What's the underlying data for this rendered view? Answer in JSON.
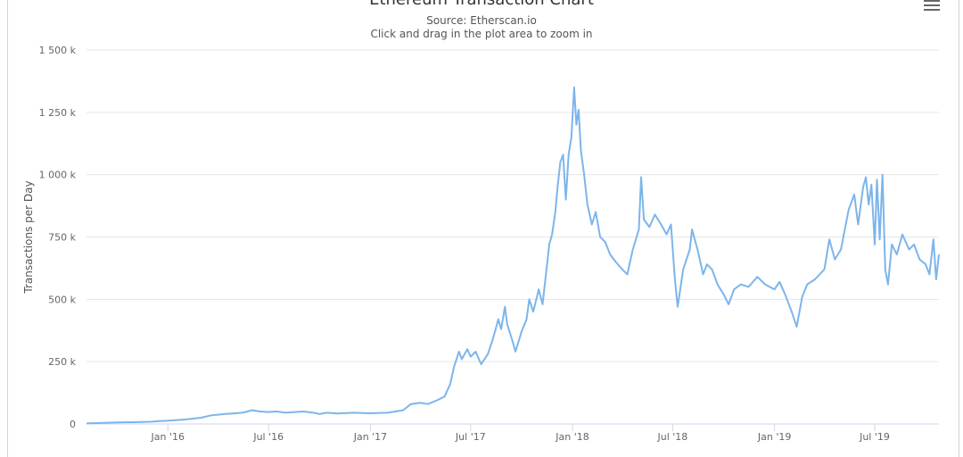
{
  "chart_data": {
    "type": "line",
    "title": "Ethereum Transaction Chart",
    "subtitle": "Source: Etherscan.io",
    "instruction": "Click and drag in the plot area to zoom in",
    "ylabel": "Transactions per Day",
    "ylim": [
      0,
      1500
    ],
    "yticks": [
      {
        "value": 0,
        "label": "0"
      },
      {
        "value": 250,
        "label": "250 k"
      },
      {
        "value": 500,
        "label": "500 k"
      },
      {
        "value": 750,
        "label": "750 k"
      },
      {
        "value": 1000,
        "label": "1 000 k"
      },
      {
        "value": 1250,
        "label": "1 250 k"
      },
      {
        "value": 1500,
        "label": "1 500 k"
      }
    ],
    "xlim": [
      "2015-08-07",
      "2019-10-25"
    ],
    "xticks": [
      {
        "date": "2016-01-01",
        "label": "Jan '16"
      },
      {
        "date": "2016-07-01",
        "label": "Jul '16"
      },
      {
        "date": "2017-01-01",
        "label": "Jan '17"
      },
      {
        "date": "2017-07-01",
        "label": "Jul '17"
      },
      {
        "date": "2018-01-01",
        "label": "Jan '18"
      },
      {
        "date": "2018-07-01",
        "label": "Jul '18"
      },
      {
        "date": "2019-01-01",
        "label": "Jan '19"
      },
      {
        "date": "2019-07-01",
        "label": "Jul '19"
      }
    ],
    "grid": true,
    "color": "#7cb5ec",
    "series": [
      {
        "values": [
          [
            "2015-08-07",
            2
          ],
          [
            "2015-09-01",
            4
          ],
          [
            "2015-10-01",
            6
          ],
          [
            "2015-11-01",
            7
          ],
          [
            "2015-12-01",
            9
          ],
          [
            "2015-12-20",
            12
          ],
          [
            "2016-01-01",
            13
          ],
          [
            "2016-01-15",
            15
          ],
          [
            "2016-02-01",
            18
          ],
          [
            "2016-03-01",
            25
          ],
          [
            "2016-03-20",
            35
          ],
          [
            "2016-04-15",
            40
          ],
          [
            "2016-05-15",
            45
          ],
          [
            "2016-06-01",
            55
          ],
          [
            "2016-06-15",
            50
          ],
          [
            "2016-07-01",
            48
          ],
          [
            "2016-07-15",
            50
          ],
          [
            "2016-08-01",
            45
          ],
          [
            "2016-09-01",
            50
          ],
          [
            "2016-09-20",
            45
          ],
          [
            "2016-10-01",
            40
          ],
          [
            "2016-10-15",
            45
          ],
          [
            "2016-11-01",
            42
          ],
          [
            "2016-12-01",
            45
          ],
          [
            "2017-01-01",
            43
          ],
          [
            "2017-02-01",
            45
          ],
          [
            "2017-03-01",
            55
          ],
          [
            "2017-03-15",
            80
          ],
          [
            "2017-04-01",
            85
          ],
          [
            "2017-04-15",
            80
          ],
          [
            "2017-05-01",
            95
          ],
          [
            "2017-05-15",
            110
          ],
          [
            "2017-05-25",
            160
          ],
          [
            "2017-06-01",
            230
          ],
          [
            "2017-06-10",
            290
          ],
          [
            "2017-06-15",
            260
          ],
          [
            "2017-06-25",
            300
          ],
          [
            "2017-07-01",
            270
          ],
          [
            "2017-07-10",
            290
          ],
          [
            "2017-07-20",
            240
          ],
          [
            "2017-08-01",
            280
          ],
          [
            "2017-08-10",
            340
          ],
          [
            "2017-08-20",
            420
          ],
          [
            "2017-08-25",
            380
          ],
          [
            "2017-09-01",
            470
          ],
          [
            "2017-09-05",
            400
          ],
          [
            "2017-09-15",
            330
          ],
          [
            "2017-09-20",
            290
          ],
          [
            "2017-10-01",
            370
          ],
          [
            "2017-10-10",
            420
          ],
          [
            "2017-10-15",
            500
          ],
          [
            "2017-10-22",
            450
          ],
          [
            "2017-11-01",
            540
          ],
          [
            "2017-11-08",
            480
          ],
          [
            "2017-11-15",
            620
          ],
          [
            "2017-11-20",
            720
          ],
          [
            "2017-11-25",
            760
          ],
          [
            "2017-12-01",
            850
          ],
          [
            "2017-12-05",
            950
          ],
          [
            "2017-12-10",
            1050
          ],
          [
            "2017-12-15",
            1080
          ],
          [
            "2017-12-20",
            900
          ],
          [
            "2017-12-25",
            1080
          ],
          [
            "2017-12-30",
            1150
          ],
          [
            "2018-01-04",
            1350
          ],
          [
            "2018-01-08",
            1200
          ],
          [
            "2018-01-12",
            1260
          ],
          [
            "2018-01-16",
            1100
          ],
          [
            "2018-01-22",
            1000
          ],
          [
            "2018-01-28",
            880
          ],
          [
            "2018-02-05",
            800
          ],
          [
            "2018-02-12",
            850
          ],
          [
            "2018-02-20",
            750
          ],
          [
            "2018-03-01",
            730
          ],
          [
            "2018-03-10",
            680
          ],
          [
            "2018-03-20",
            650
          ],
          [
            "2018-04-01",
            620
          ],
          [
            "2018-04-10",
            600
          ],
          [
            "2018-04-20",
            700
          ],
          [
            "2018-05-01",
            780
          ],
          [
            "2018-05-05",
            990
          ],
          [
            "2018-05-10",
            820
          ],
          [
            "2018-05-20",
            790
          ],
          [
            "2018-05-30",
            840
          ],
          [
            "2018-06-10",
            800
          ],
          [
            "2018-06-20",
            760
          ],
          [
            "2018-06-28",
            800
          ],
          [
            "2018-07-05",
            580
          ],
          [
            "2018-07-10",
            470
          ],
          [
            "2018-07-20",
            620
          ],
          [
            "2018-08-01",
            700
          ],
          [
            "2018-08-05",
            780
          ],
          [
            "2018-08-15",
            700
          ],
          [
            "2018-08-25",
            600
          ],
          [
            "2018-09-01",
            640
          ],
          [
            "2018-09-10",
            620
          ],
          [
            "2018-09-20",
            560
          ],
          [
            "2018-10-01",
            520
          ],
          [
            "2018-10-10",
            480
          ],
          [
            "2018-10-20",
            540
          ],
          [
            "2018-11-01",
            560
          ],
          [
            "2018-11-15",
            550
          ],
          [
            "2018-12-01",
            590
          ],
          [
            "2018-12-15",
            560
          ],
          [
            "2019-01-01",
            540
          ],
          [
            "2019-01-10",
            570
          ],
          [
            "2019-01-20",
            520
          ],
          [
            "2019-02-01",
            450
          ],
          [
            "2019-02-10",
            390
          ],
          [
            "2019-02-20",
            510
          ],
          [
            "2019-03-01",
            560
          ],
          [
            "2019-03-15",
            580
          ],
          [
            "2019-04-01",
            620
          ],
          [
            "2019-04-10",
            740
          ],
          [
            "2019-04-20",
            660
          ],
          [
            "2019-05-01",
            700
          ],
          [
            "2019-05-15",
            860
          ],
          [
            "2019-05-25",
            920
          ],
          [
            "2019-06-01",
            800
          ],
          [
            "2019-06-10",
            950
          ],
          [
            "2019-06-15",
            990
          ],
          [
            "2019-06-20",
            880
          ],
          [
            "2019-06-25",
            960
          ],
          [
            "2019-07-01",
            720
          ],
          [
            "2019-07-05",
            980
          ],
          [
            "2019-07-10",
            740
          ],
          [
            "2019-07-15",
            1000
          ],
          [
            "2019-07-20",
            620
          ],
          [
            "2019-07-25",
            560
          ],
          [
            "2019-08-01",
            720
          ],
          [
            "2019-08-10",
            680
          ],
          [
            "2019-08-20",
            760
          ],
          [
            "2019-09-01",
            700
          ],
          [
            "2019-09-10",
            720
          ],
          [
            "2019-09-20",
            660
          ],
          [
            "2019-10-01",
            640
          ],
          [
            "2019-10-08",
            600
          ],
          [
            "2019-10-15",
            740
          ],
          [
            "2019-10-20",
            580
          ],
          [
            "2019-10-25",
            680
          ]
        ]
      }
    ]
  }
}
